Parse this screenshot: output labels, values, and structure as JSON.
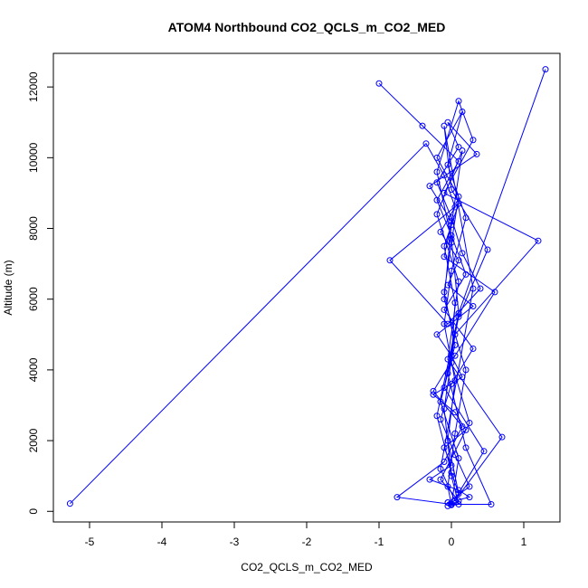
{
  "chart_data": {
    "type": "line",
    "title": "ATOM4 Northbound CO2_QCLS_m_CO2_MED",
    "xlabel": "CO2_QCLS_m_CO2_MED",
    "ylabel": "Altitude (m)",
    "xlim": [
      -5.5,
      1.5
    ],
    "ylim": [
      -300,
      12950
    ],
    "xticks": [
      -5,
      -4,
      -3,
      -2,
      -1,
      0,
      1
    ],
    "yticks": [
      0,
      2000,
      4000,
      6000,
      8000,
      10000,
      12000
    ],
    "grid": false,
    "colors": {
      "series": "#0000ff"
    },
    "series": [
      {
        "x": [
          -5.27,
          -0.35,
          -0.1,
          0.05,
          -0.15,
          0.1,
          -0.05,
          0.3,
          -0.2,
          0.0,
          0.15,
          -0.25,
          0.05,
          0.2,
          -0.1,
          0.0,
          -0.3,
          0.1,
          0.25,
          -0.05,
          0.0,
          0.45,
          -0.1,
          0.1,
          0.5,
          0.0,
          -0.1,
          0.3,
          -0.15,
          0.05,
          0.7,
          -0.05,
          0.1,
          -0.2,
          0.15,
          0.0,
          -0.1,
          0.2,
          0.05,
          -0.05,
          0.0,
          0.1,
          -0.15,
          0.05,
          -0.1,
          0.0,
          0.1,
          -0.2,
          0.15,
          -0.05,
          0.2,
          0.0,
          -0.1,
          0.05,
          -0.05,
          0.1,
          0.0,
          -0.2,
          0.1,
          1.3
        ],
        "y": [
          220,
          10400,
          9500,
          8600,
          7900,
          7100,
          6400,
          5800,
          5000,
          4400,
          3800,
          3300,
          2800,
          2300,
          1800,
          1300,
          900,
          600,
          400,
          250,
          180,
          1700,
          3500,
          5500,
          7400,
          9100,
          10900,
          6300,
          1200,
          300,
          2100,
          4300,
          6500,
          8400,
          10200,
          8100,
          6000,
          4000,
          2200,
          700,
          200,
          1500,
          3100,
          4700,
          6200,
          7600,
          8900,
          10000,
          11300,
          9800,
          8300,
          6800,
          5300,
          3700,
          2000,
          500,
          1100,
          2700,
          5600,
          12500
        ]
      },
      {
        "x": [
          -1.0,
          -0.4,
          0.1,
          -0.2,
          0.0,
          0.2,
          -0.1,
          0.3,
          0.0,
          -0.15,
          0.05,
          0.25,
          -0.05,
          0.0,
          -0.75,
          -0.1,
          0.15,
          -0.25,
          0.05,
          0.6,
          -0.1,
          0.0,
          -0.3,
          0.35,
          -0.05,
          0.1,
          -0.2,
          0.0,
          0.15,
          0.4,
          -0.05,
          -0.85,
          0.1,
          -0.1,
          0.05,
          0.0,
          0.25,
          -0.15,
          0.1,
          0.0,
          0.55,
          0.2,
          -0.05,
          0.1,
          0.0,
          -0.2,
          0.1,
          0.3,
          -0.1,
          1.2,
          0.05,
          -0.1,
          0.0,
          0.1,
          -0.05
        ],
        "y": [
          12100,
          10900,
          9900,
          8800,
          7800,
          6700,
          5700,
          4600,
          3600,
          2600,
          1600,
          700,
          250,
          200,
          400,
          1400,
          2400,
          3400,
          4400,
          6200,
          7200,
          8200,
          9200,
          10100,
          11000,
          10300,
          9300,
          8300,
          7300,
          6300,
          5300,
          7100,
          8700,
          7500,
          5900,
          4200,
          2500,
          900,
          300,
          200,
          200,
          1800,
          3900,
          5600,
          7700,
          9600,
          11600,
          10500,
          9000,
          7650,
          5000,
          2900,
          1000,
          200,
          150
        ]
      }
    ]
  }
}
